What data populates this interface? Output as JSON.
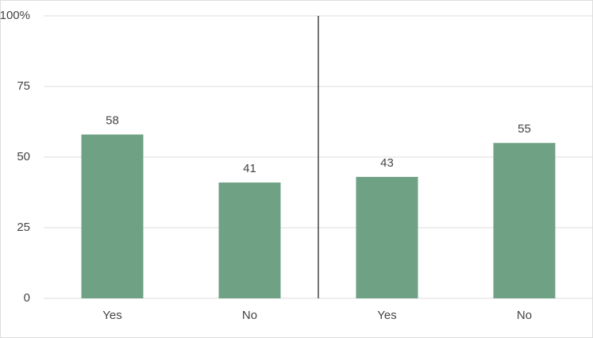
{
  "chart_data": {
    "type": "bar",
    "categories": [
      "Yes",
      "No",
      "Yes",
      "No"
    ],
    "values": [
      58,
      41,
      43,
      55
    ],
    "color": "#6fa185",
    "ylim": [
      0,
      100
    ],
    "yticks": [
      0,
      25,
      50,
      75,
      {
        "value": 100,
        "label": "100%"
      }
    ],
    "grid": true
  }
}
